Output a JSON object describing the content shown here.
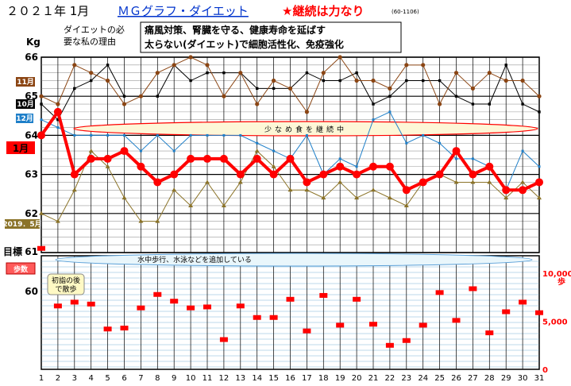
{
  "header": {
    "title": "２０２１年 1月",
    "subtitle_link": "ＭＧグラフ・ダイエット",
    "slogan": "★継続は力なり",
    "code": "(60-1106)"
  },
  "reason": {
    "label_line1": "ダイエットの必",
    "label_line2": "要な私の理由",
    "text_line1": "痛風対策、腎臓を守る、健康寿命を延ばす",
    "text_line2": "太らない(ダイエット)で細胞活性化、免疫強化"
  },
  "colors": {
    "jan": "#ff0000",
    "dec": "#1e7fc9",
    "nov": "#8b4513",
    "oct": "#000000",
    "may": "#8b7328",
    "steps": "#ff0000",
    "ellipse_fill": "#fdf7d7",
    "ellipse_fill2": "#e9f6fb"
  },
  "chart_data": [
    {
      "type": "line",
      "ylabel": "Kg",
      "ylim": [
        61,
        66
      ],
      "yticks": [
        62,
        63,
        64,
        65,
        66
      ],
      "goal_label": "目標",
      "goal_value": 61,
      "annotation": "少なめ食を継続中",
      "x": [
        1,
        2,
        3,
        4,
        5,
        6,
        7,
        8,
        9,
        10,
        11,
        12,
        13,
        14,
        15,
        16,
        17,
        18,
        19,
        20,
        21,
        22,
        23,
        24,
        25,
        26,
        27,
        28,
        29,
        30,
        31
      ],
      "series": [
        {
          "name": "1月",
          "color": "#ff0000",
          "values": [
            64.0,
            64.6,
            63.0,
            63.4,
            63.4,
            63.6,
            63.2,
            62.8,
            63.0,
            63.4,
            63.4,
            63.4,
            63.0,
            63.4,
            63.0,
            63.4,
            62.8,
            63.0,
            63.2,
            63.0,
            63.2,
            63.2,
            62.6,
            62.8,
            63.0,
            63.6,
            63.0,
            63.2,
            62.6,
            62.6,
            62.8
          ]
        },
        {
          "name": "12月",
          "color": "#1e7fc9",
          "values": [
            64.4,
            64.2,
            64.0,
            64.0,
            64.0,
            64.0,
            63.6,
            64.0,
            63.6,
            64.0,
            64.0,
            64.0,
            64.0,
            63.8,
            63.6,
            63.4,
            64.0,
            63.0,
            63.4,
            63.2,
            64.4,
            64.6,
            63.8,
            64.0,
            63.8,
            63.4,
            63.4,
            63.2,
            62.6,
            63.6,
            63.2
          ]
        },
        {
          "name": "11月",
          "color": "#8b4513",
          "values": [
            65.0,
            64.8,
            65.8,
            65.6,
            65.4,
            64.8,
            65.0,
            65.6,
            65.8,
            66.0,
            65.8,
            65.0,
            65.6,
            64.8,
            65.4,
            65.2,
            64.6,
            65.6,
            66.0,
            65.4,
            65.4,
            65.2,
            65.8,
            65.8,
            64.8,
            65.6,
            65.2,
            65.6,
            65.4,
            65.4,
            65.0
          ]
        },
        {
          "name": "10月",
          "color": "#000000",
          "values": [
            64.8,
            64.4,
            65.2,
            65.4,
            65.8,
            65.0,
            65.0,
            65.0,
            65.8,
            65.4,
            65.6,
            65.6,
            65.6,
            65.2,
            65.2,
            65.2,
            65.6,
            65.4,
            65.4,
            65.6,
            64.8,
            65.0,
            65.4,
            65.4,
            65.4,
            65.0,
            64.8,
            64.8,
            65.8,
            64.8,
            64.6
          ]
        },
        {
          "name": "2019．5月",
          "color": "#8b7328",
          "values": [
            62.0,
            61.8,
            62.6,
            63.6,
            63.2,
            62.4,
            61.8,
            61.8,
            62.6,
            62.2,
            62.8,
            62.2,
            62.8,
            63.6,
            63.2,
            62.6,
            62.6,
            62.4,
            62.8,
            62.4,
            62.6,
            62.4,
            62.2,
            62.8,
            63.0,
            62.8,
            62.8,
            62.8,
            62.4,
            62.8,
            62.4
          ]
        }
      ]
    },
    {
      "type": "scatter",
      "ylabel": "歩数",
      "ylabel_unit": "歩",
      "ylim": [
        0,
        12000
      ],
      "ytick_labels": [
        "0",
        "5,000",
        "10,000"
      ],
      "ytick_values": [
        0,
        5000,
        10000
      ],
      "left_value_label": "60",
      "annotation": "水中歩行、水泳などを追加している",
      "note_line1": "初詣の後",
      "note_line2": "で散歩",
      "x": [
        1,
        2,
        3,
        4,
        5,
        6,
        7,
        8,
        9,
        10,
        11,
        12,
        13,
        14,
        15,
        16,
        17,
        18,
        19,
        20,
        21,
        22,
        23,
        24,
        25,
        26,
        27,
        28,
        29,
        30,
        31
      ],
      "values": [
        12600,
        6600,
        7000,
        6800,
        4200,
        4300,
        6400,
        7800,
        7100,
        6400,
        6500,
        3100,
        6600,
        5400,
        5400,
        7300,
        4000,
        7700,
        4600,
        7300,
        4700,
        2500,
        3000,
        4600,
        8000,
        5100,
        8400,
        3800,
        6000,
        7000,
        5900
      ]
    }
  ],
  "month_labels": {
    "nov": "11月",
    "oct": "10月",
    "dec": "12月",
    "jan": "1月",
    "may": "2019．5月",
    "steps": "歩数"
  }
}
